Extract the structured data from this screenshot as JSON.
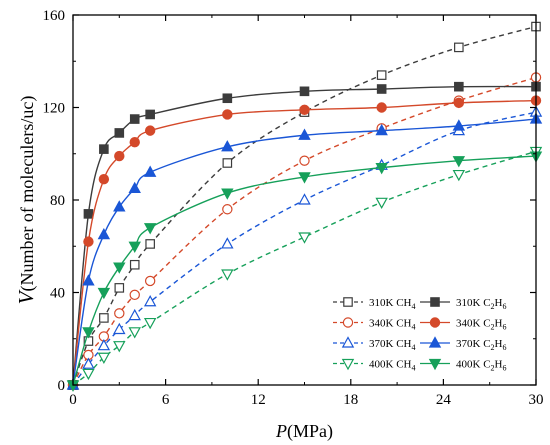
{
  "chart_data": {
    "type": "line",
    "xlabel": {
      "italic": "P",
      "rest": "(MPa)"
    },
    "ylabel": {
      "italic": "V",
      "rest": "(Number of moleculers/uc)"
    },
    "xlim": [
      0,
      30
    ],
    "ylim": [
      0,
      160
    ],
    "xticks": [
      0,
      6,
      12,
      18,
      24,
      30
    ],
    "yticks": [
      0,
      40,
      80,
      120,
      160
    ],
    "xtick_labels": [
      "0",
      "6",
      "12",
      "18",
      "24",
      "30"
    ],
    "ytick_labels": [
      "0",
      "40",
      "80",
      "120",
      "160"
    ],
    "grid": false,
    "legend_position": "bottom-right",
    "x": [
      0,
      1,
      2,
      3,
      4,
      5,
      10,
      15,
      20,
      25,
      30
    ],
    "series": [
      {
        "name": "310K CH4",
        "label_base": "310K CH",
        "label_sub": "4",
        "color": "#3c3c3c",
        "marker": "square",
        "filled": false,
        "line": "dashed",
        "values": [
          0,
          19,
          29,
          42,
          52,
          61,
          96,
          118,
          134,
          146,
          155
        ]
      },
      {
        "name": "340K CH4",
        "label_base": "340K CH",
        "label_sub": "4",
        "color": "#d4492a",
        "marker": "circle",
        "filled": false,
        "line": "dashed",
        "values": [
          0,
          13,
          21,
          31,
          39,
          45,
          76,
          97,
          111,
          123,
          133
        ]
      },
      {
        "name": "370K CH4",
        "label_base": "370K CH",
        "label_sub": "4",
        "color": "#1a56d6",
        "marker": "triangle-up",
        "filled": false,
        "line": "dashed",
        "values": [
          0,
          9,
          17,
          24,
          30,
          36,
          61,
          80,
          95,
          110,
          118
        ]
      },
      {
        "name": "400K CH4",
        "label_base": "400K CH",
        "label_sub": "4",
        "color": "#16a05a",
        "marker": "triangle-down",
        "filled": false,
        "line": "dashed",
        "values": [
          0,
          5,
          12,
          17,
          23,
          27,
          48,
          64,
          79,
          91,
          101
        ]
      },
      {
        "name": "310K C2H6",
        "label_base": "310K C",
        "label_sub": "2",
        "label_mid": "H",
        "label_sub2": "6",
        "color": "#3c3c3c",
        "marker": "square",
        "filled": true,
        "line": "solid",
        "values": [
          0,
          74,
          102,
          109,
          115,
          117,
          124,
          127,
          128,
          129,
          129
        ]
      },
      {
        "name": "340K C2H6",
        "label_base": "340K C",
        "label_sub": "2",
        "label_mid": "H",
        "label_sub2": "6",
        "color": "#d4492a",
        "marker": "circle",
        "filled": true,
        "line": "solid",
        "values": [
          0,
          62,
          89,
          99,
          105,
          110,
          117,
          119,
          120,
          122,
          123
        ]
      },
      {
        "name": "370K C2H6",
        "label_base": "370K C",
        "label_sub": "2",
        "label_mid": "H",
        "label_sub2": "6",
        "color": "#1a56d6",
        "marker": "triangle-up",
        "filled": true,
        "line": "solid",
        "values": [
          0,
          45,
          65,
          77,
          85,
          92,
          103,
          108,
          110,
          112,
          115
        ]
      },
      {
        "name": "400K C2H6",
        "label_base": "400K C",
        "label_sub": "2",
        "label_mid": "H",
        "label_sub2": "6",
        "color": "#16a05a",
        "marker": "triangle-down",
        "filled": true,
        "line": "solid",
        "values": [
          0,
          23,
          40,
          51,
          60,
          68,
          83,
          90,
          94,
          97,
          99
        ]
      }
    ]
  }
}
